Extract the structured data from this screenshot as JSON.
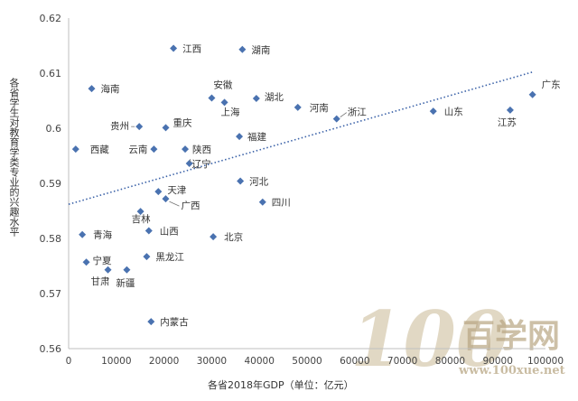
{
  "chart_data": {
    "type": "scatter",
    "title": "",
    "xlabel": "各省2018年GDP（单位：亿元）",
    "ylabel": "各省学生对教育学类专业的兴趣水平",
    "xlim": [
      0,
      100000
    ],
    "ylim": [
      0.56,
      0.62
    ],
    "x_ticks": [
      "0",
      "10000",
      "20000",
      "30000",
      "40000",
      "50000",
      "60000",
      "70000",
      "80000",
      "90000",
      "100000"
    ],
    "y_ticks": [
      "0.56",
      "0.57",
      "0.58",
      "0.59",
      "0.6",
      "0.61",
      "0.62"
    ],
    "grid": false,
    "series": [
      {
        "points": [
          {
            "label": "江西",
            "x": 21985,
            "y": 0.6145
          },
          {
            "label": "湖南",
            "x": 36426,
            "y": 0.6143
          },
          {
            "label": "海南",
            "x": 4832,
            "y": 0.6072
          },
          {
            "label": "安徽",
            "x": 30007,
            "y": 0.6055
          },
          {
            "label": "湖北",
            "x": 39367,
            "y": 0.6054
          },
          {
            "label": "上海",
            "x": 32680,
            "y": 0.6047
          },
          {
            "label": "河南",
            "x": 48056,
            "y": 0.6038
          },
          {
            "label": "山东",
            "x": 76470,
            "y": 0.6031
          },
          {
            "label": "浙江",
            "x": 56197,
            "y": 0.6017
          },
          {
            "label": "江苏",
            "x": 92595,
            "y": 0.6033
          },
          {
            "label": "广东",
            "x": 97278,
            "y": 0.6061
          },
          {
            "label": "贵州",
            "x": 14806,
            "y": 0.6003
          },
          {
            "label": "重庆",
            "x": 20363,
            "y": 0.6001
          },
          {
            "label": "福建",
            "x": 35804,
            "y": 0.5985
          },
          {
            "label": "西藏",
            "x": 1478,
            "y": 0.5962
          },
          {
            "label": "云南",
            "x": 17881,
            "y": 0.5962
          },
          {
            "label": "陕西",
            "x": 24438,
            "y": 0.5962
          },
          {
            "label": "辽宁",
            "x": 25315,
            "y": 0.5936
          },
          {
            "label": "河北",
            "x": 36010,
            "y": 0.5904
          },
          {
            "label": "天津",
            "x": 18810,
            "y": 0.5885
          },
          {
            "label": "广西",
            "x": 20353,
            "y": 0.5872
          },
          {
            "label": "四川",
            "x": 40678,
            "y": 0.5866
          },
          {
            "label": "吉林",
            "x": 15075,
            "y": 0.5849
          },
          {
            "label": "山西",
            "x": 16818,
            "y": 0.5814
          },
          {
            "label": "青海",
            "x": 2865,
            "y": 0.5807
          },
          {
            "label": "北京",
            "x": 30320,
            "y": 0.5803
          },
          {
            "label": "黑龙江",
            "x": 16362,
            "y": 0.5767
          },
          {
            "label": "宁夏",
            "x": 3705,
            "y": 0.5757
          },
          {
            "label": "甘肃",
            "x": 8246,
            "y": 0.5743
          },
          {
            "label": "新疆",
            "x": 12199,
            "y": 0.5743
          },
          {
            "label": "内蒙古",
            "x": 17289,
            "y": 0.5649
          }
        ]
      }
    ],
    "trendline": {
      "style": "dotted",
      "x": [
        0,
        97278
      ],
      "y": [
        0.5862,
        0.6102
      ]
    },
    "point_color": "#4a72b0",
    "trendline_color": "#3b62a8"
  },
  "watermark": {
    "big": "100",
    "brand": "百学网",
    "url": "www.100xue.net",
    "color": "#b8a683"
  }
}
